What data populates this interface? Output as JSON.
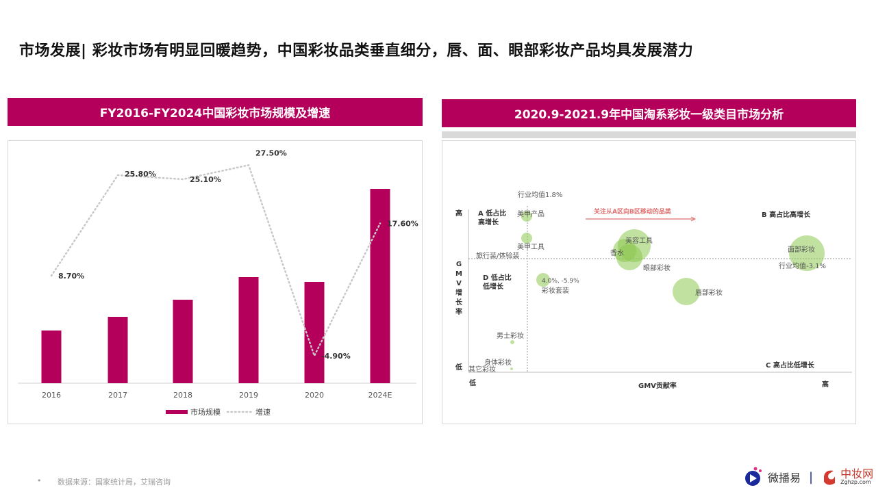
{
  "page": {
    "title": "市场发展| 彩妆市场有明显回暖趋势，中国彩妆品类垂直细分，唇、面、眼部彩妆产品均具发展潜力",
    "source_bullet": "•",
    "source": "数据来源：国家统计局，艾瑞咨询",
    "brand_weiboyi": "微播易",
    "brand_separator": "|",
    "brand_zhongzhuang": "中妆网",
    "brand_zhongzhuang_url": "Zghzp.com",
    "accent_color": "#b5005b",
    "bubble_color": "#8cc850"
  },
  "chart_data": [
    {
      "type": "bar",
      "title": "FY2016-FY2024中国彩妆市场规模及增速",
      "categories": [
        "2016",
        "2017",
        "2018",
        "2019",
        "2020",
        "2024E"
      ],
      "series": [
        {
          "name": "市场规模",
          "type": "bar",
          "values": [
            77,
            97,
            122,
            155,
            148,
            284
          ],
          "color": "#b5005b"
        },
        {
          "name": "增速",
          "type": "line",
          "style": "dotted",
          "values": [
            8.7,
            25.8,
            25.1,
            27.5,
            -4.9,
            17.6
          ],
          "labels": [
            "8.70%",
            "25.80%",
            "25.10%",
            "27.50%",
            "-4.90%",
            "17.60%"
          ],
          "color": "#c8c8c8"
        }
      ],
      "legend": "bottom",
      "grid": false
    },
    {
      "type": "scatter",
      "title": "2020.9-2021.9年中国淘系彩妆一级类目市场分析",
      "xlabel": "GMV贡献率",
      "ylabel": "GMV增长率",
      "x_low": "低",
      "x_high": "高",
      "y_low": "低",
      "y_high": "高",
      "quadrants": [
        "A 低占比\n高增长",
        "B 高占比高增长",
        "C 高占比低增长",
        "D 低占比\n低增长"
      ],
      "x_ref_label": "行业均值1.8%",
      "y_ref_label": "行业均值-3.1%",
      "annotation": "关注从A区向B区移动的品类",
      "point_note": "4.0%, -5.9%",
      "bubbles": [
        "美甲产品",
        "美甲工具",
        "旅行装/体验装",
        "美容工具",
        "香水",
        "眼部彩妆",
        "面部彩妆",
        "唇部彩妆",
        "彩妆套装",
        "男士彩妆",
        "身体彩妆",
        "其它彩妆"
      ]
    }
  ]
}
